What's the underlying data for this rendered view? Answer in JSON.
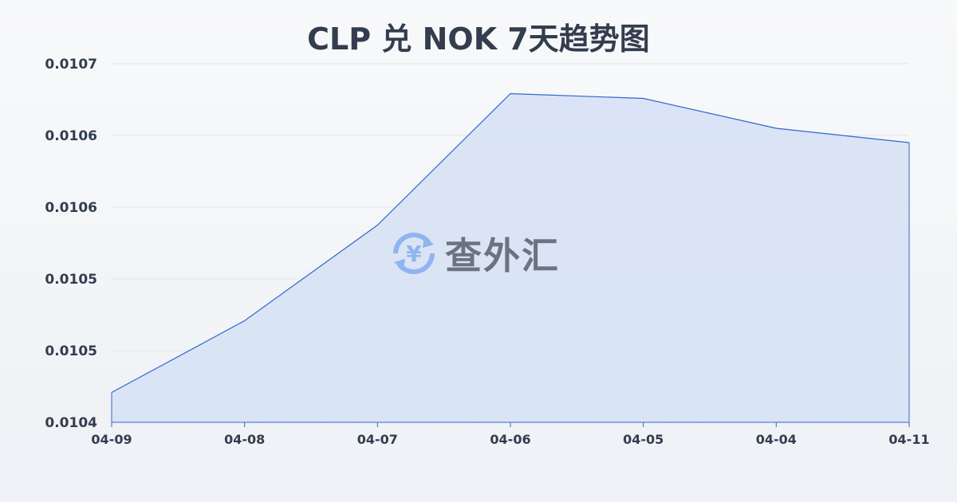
{
  "chart_data": {
    "type": "area",
    "title": "CLP 兑 NOK 7天趋势图",
    "categories": [
      "04-09",
      "04-08",
      "04-07",
      "04-06",
      "04-05",
      "04-04",
      "04-11"
    ],
    "values": [
      0.010425,
      0.010485,
      0.010565,
      0.010675,
      0.010671,
      0.010646,
      0.010634
    ],
    "ylim": [
      0.0104,
      0.0107
    ],
    "yticks": [
      0.0104,
      0.01046,
      0.01052,
      0.01058,
      0.01064,
      0.0107
    ],
    "ytick_labels": [
      "0.0104",
      "0.0105",
      "0.0105",
      "0.0106",
      "0.0106",
      "0.0107"
    ],
    "grid": true,
    "line_color": "#3366cc",
    "fill_color": "#d5e0f5"
  },
  "watermark": {
    "text": "查外汇",
    "icon": "yen-exchange-icon"
  }
}
